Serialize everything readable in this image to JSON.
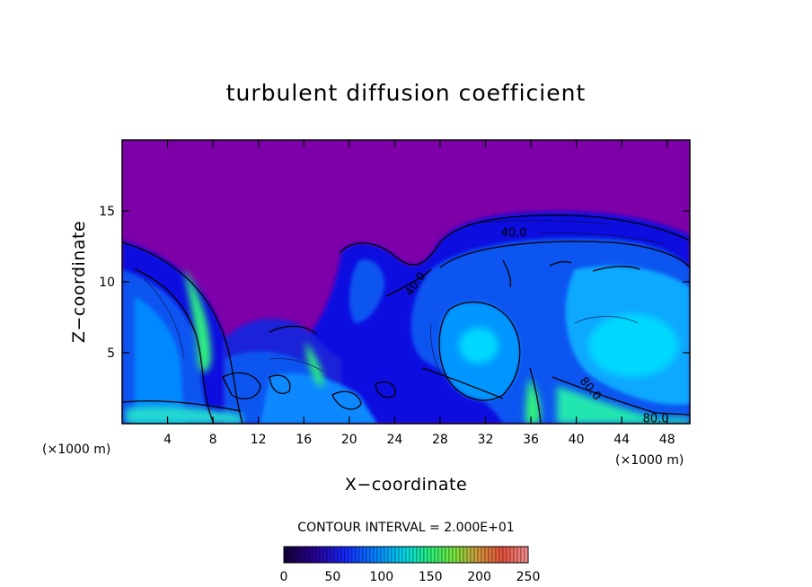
{
  "chart_data": {
    "type": "heatmap",
    "title": "turbulent diffusion coefficient",
    "xlabel": "X−coordinate",
    "ylabel": "Z−coordinate",
    "x_unit": "(×1000 m)",
    "y_unit": "(×1000 m)",
    "xlim": [
      0,
      50
    ],
    "ylim": [
      0,
      20
    ],
    "x_ticks": [
      4,
      8,
      12,
      16,
      20,
      24,
      28,
      32,
      36,
      40,
      44,
      48
    ],
    "x_tick_labels": [
      "4",
      "8",
      "12",
      "16",
      "20",
      "24",
      "28",
      "32",
      "36",
      "40",
      "44",
      "48"
    ],
    "y_ticks": [
      5,
      10,
      15
    ],
    "y_tick_labels": [
      "5",
      "10",
      "15"
    ],
    "contour_interval_text": "CONTOUR INTERVAL = 2.000E+01",
    "contour_labels": [
      {
        "text": "40.0",
        "x": 34.5,
        "y": 13.2,
        "angle": 0
      },
      {
        "text": "40.0",
        "x": 26.1,
        "y": 9.7,
        "angle": -55
      },
      {
        "text": "80.0",
        "x": 41.0,
        "y": 2.3,
        "angle": 50
      },
      {
        "text": "80.0",
        "x": 47.0,
        "y": 0.1,
        "angle": 0
      }
    ],
    "colorbar": {
      "min": 0,
      "max": 250,
      "ticks": [
        0,
        50,
        100,
        150,
        200,
        250
      ],
      "tick_labels": [
        "0",
        "50",
        "100",
        "150",
        "200",
        "250"
      ]
    },
    "colors": {
      "background_field": "#7d00a8",
      "low": "#1a1aff",
      "mid": "#0096ff",
      "high": "#00e6ff",
      "peak": "#30ff80"
    }
  }
}
